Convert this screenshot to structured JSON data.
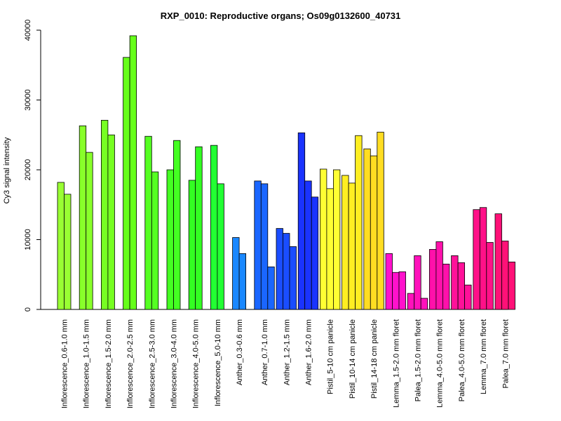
{
  "chart_data": {
    "type": "bar",
    "title": "RXP_0010: Reproductive organs; Os09g0132600_40731",
    "xlabel": "",
    "ylabel": "Cy3 signal intensity",
    "ylim": [
      0,
      40000
    ],
    "yticks": [
      0,
      10000,
      20000,
      30000,
      40000
    ],
    "grid": false,
    "legend": "none",
    "categories": [
      "Inflorescence_0.6-1.0 mm",
      "Inflorescence_1.0-1.5 mm",
      "Inflorescence_1.5-2.0 mm",
      "Inflorescence_2.0-2.5 mm",
      "Inflorescence_2.5-3.0 mm",
      "Inflorescence_3.0-4.0 mm",
      "Inflorescence_4.0-5.0 mm",
      "Inflorescence_5.0-10 mm",
      "Anther_0.3-0.6 mm",
      "Anther_0.7-1.0 mm",
      "Anther_1.2-1.5 mm",
      "Anther_1.6-2.0 mm",
      "Pistil_5-10 cm panicle",
      "Pistil_10-14 cm panicle",
      "Pistil_14-18 cm panicle",
      "Lemma_1.5-2.0 mm floret",
      "Palea_1.5-2.0 mm floret",
      "Lemma_4.0-5.0 mm floret",
      "Palea_4.0-5.0 mm floret",
      "Lemma_7.0 mm floret",
      "Palea_7.0 mm floret"
    ],
    "groups": [
      {
        "values": [
          18200,
          16500
        ],
        "color": "#99ff33"
      },
      {
        "values": [
          26300,
          22500
        ],
        "color": "#88ff2a"
      },
      {
        "values": [
          27100,
          25000
        ],
        "color": "#77ff22"
      },
      {
        "values": [
          36100,
          39200
        ],
        "color": "#66ff1a"
      },
      {
        "values": [
          24800,
          19700
        ],
        "color": "#55ff22"
      },
      {
        "values": [
          20000,
          24200
        ],
        "color": "#44ff22"
      },
      {
        "values": [
          18500,
          23300
        ],
        "color": "#33ff22"
      },
      {
        "values": [
          23500,
          18000
        ],
        "color": "#22ff33"
      },
      {
        "values": [
          10300,
          8000
        ],
        "color": "#1a88ff"
      },
      {
        "values": [
          18400,
          18000,
          6100
        ],
        "color": "#1a66ff"
      },
      {
        "values": [
          11600,
          10900,
          9000
        ],
        "color": "#1a4dff"
      },
      {
        "values": [
          25300,
          18400,
          16100
        ],
        "color": "#1a33ff"
      },
      {
        "values": [
          20100,
          17300,
          20000
        ],
        "color": "#ffff33"
      },
      {
        "values": [
          19200,
          18100,
          24900
        ],
        "color": "#ffee22"
      },
      {
        "values": [
          23000,
          22000,
          25400
        ],
        "color": "#ffdd22"
      },
      {
        "values": [
          8000,
          5300,
          5400
        ],
        "color": "#ff11cc"
      },
      {
        "values": [
          2300,
          7700,
          1600
        ],
        "color": "#ff11bb"
      },
      {
        "values": [
          8600,
          9700,
          6500
        ],
        "color": "#ff11aa"
      },
      {
        "values": [
          7700,
          6700,
          3500
        ],
        "color": "#ff1199"
      },
      {
        "values": [
          14300,
          14600,
          9600
        ],
        "color": "#ff1188"
      },
      {
        "values": [
          13700,
          9800,
          6800
        ],
        "color": "#ff1177"
      }
    ]
  }
}
